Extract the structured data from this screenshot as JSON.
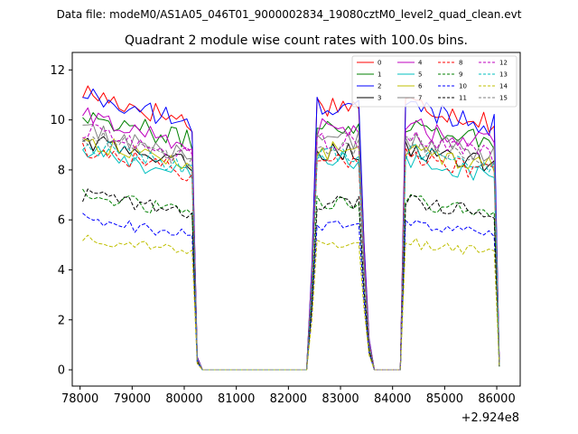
{
  "figure": {
    "suptitle": "Data file: modeM0/AS1A05_046T01_9000002834_19080cztM0_level2_quad_clean.evt"
  },
  "chart_data": {
    "type": "line",
    "title": "Quadrant 2 module wise count rates with 100.0s bins.",
    "xlabel": "",
    "ylabel": "",
    "x_offset_label": "+2.924e8",
    "xlim": [
      77850,
      86450
    ],
    "ylim": [
      -0.65,
      12.7
    ],
    "xticks": [
      78000,
      79000,
      80000,
      81000,
      82000,
      83000,
      84000,
      85000,
      86000
    ],
    "xtick_labels": [
      "78000",
      "79000",
      "80000",
      "81000",
      "82000",
      "83000",
      "84000",
      "85000",
      "86000"
    ],
    "yticks": [
      0,
      2,
      4,
      6,
      8,
      10,
      12
    ],
    "ytick_labels": [
      "0",
      "2",
      "4",
      "6",
      "8",
      "10",
      "12"
    ],
    "legend_position": "top-right",
    "bin_seconds": 100,
    "active_segments": [
      {
        "start": 78050,
        "end": 80150
      },
      {
        "start": 82550,
        "end": 83350
      },
      {
        "start": 84250,
        "end": 85950
      }
    ],
    "transition_points": [
      {
        "x": 80250,
        "factor": 0.05
      },
      {
        "x": 80350,
        "factor": 0.0
      },
      {
        "x": 82350,
        "factor": 0.0
      },
      {
        "x": 82450,
        "factor": 0.4
      },
      {
        "x": 83450,
        "factor": 0.5
      },
      {
        "x": 83550,
        "factor": 0.12
      },
      {
        "x": 83650,
        "factor": 0.0
      },
      {
        "x": 84150,
        "factor": 0.0
      },
      {
        "x": 86050,
        "factor": 0.02
      }
    ],
    "series": [
      {
        "name": "0",
        "color": "#ff0000",
        "dash": "solid",
        "base": 10.3
      },
      {
        "name": "1",
        "color": "#008000",
        "dash": "solid",
        "base": 9.5
      },
      {
        "name": "2",
        "color": "#0000ff",
        "dash": "solid",
        "base": 10.2
      },
      {
        "name": "3",
        "color": "#000000",
        "dash": "solid",
        "base": 8.5
      },
      {
        "name": "4",
        "color": "#bf00bf",
        "dash": "solid",
        "base": 9.4
      },
      {
        "name": "5",
        "color": "#00bfbf",
        "dash": "solid",
        "base": 8.1
      },
      {
        "name": "6",
        "color": "#bfbf00",
        "dash": "solid",
        "base": 8.5
      },
      {
        "name": "7",
        "color": "#808080",
        "dash": "solid",
        "base": 8.9
      },
      {
        "name": "8",
        "color": "#ff0000",
        "dash": "dashed",
        "base": 8.2
      },
      {
        "name": "9",
        "color": "#008000",
        "dash": "dashed",
        "base": 6.5
      },
      {
        "name": "10",
        "color": "#0000ff",
        "dash": "dashed",
        "base": 5.6
      },
      {
        "name": "11",
        "color": "#000000",
        "dash": "dashed",
        "base": 6.5
      },
      {
        "name": "12",
        "color": "#bf00bf",
        "dash": "dashed",
        "base": 8.9
      },
      {
        "name": "13",
        "color": "#00bfbf",
        "dash": "dashed",
        "base": 8.4
      },
      {
        "name": "14",
        "color": "#bfbf00",
        "dash": "dashed",
        "base": 4.9
      },
      {
        "name": "15",
        "color": "#808080",
        "dash": "dashed",
        "base": 8.7
      }
    ]
  }
}
